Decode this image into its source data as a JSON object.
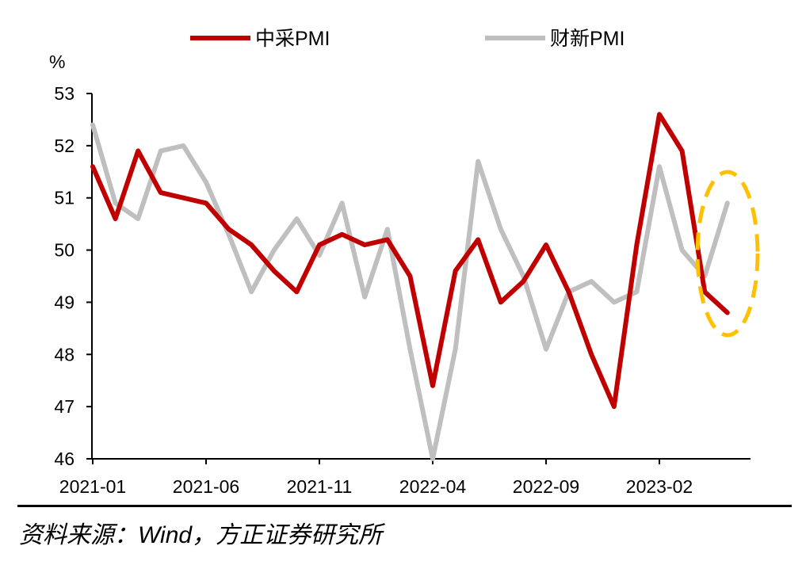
{
  "chart_data": {
    "type": "line",
    "y_unit": "%",
    "ylim": [
      46,
      53
    ],
    "yticks": [
      "46",
      "47",
      "48",
      "49",
      "50",
      "51",
      "52",
      "53"
    ],
    "x": [
      "2021-01",
      "2021-02",
      "2021-03",
      "2021-04",
      "2021-05",
      "2021-06",
      "2021-07",
      "2021-08",
      "2021-09",
      "2021-10",
      "2021-11",
      "2021-12",
      "2022-01",
      "2022-02",
      "2022-03",
      "2022-04",
      "2022-05",
      "2022-06",
      "2022-07",
      "2022-08",
      "2022-09",
      "2022-10",
      "2022-11",
      "2022-12",
      "2023-01",
      "2023-02",
      "2023-03",
      "2023-04",
      "2023-05"
    ],
    "xtick_labels": [
      "2021-01",
      "2021-06",
      "2021-11",
      "2022-04",
      "2022-09",
      "2023-02"
    ],
    "series": [
      {
        "name": "中采PMI",
        "color": "#c00000",
        "values": [
          51.6,
          50.6,
          51.9,
          51.1,
          51.0,
          50.9,
          50.4,
          50.1,
          49.6,
          49.2,
          50.1,
          50.3,
          50.1,
          50.2,
          49.5,
          47.4,
          49.6,
          50.2,
          49.0,
          49.4,
          50.1,
          49.2,
          48.0,
          47.0,
          50.1,
          52.6,
          51.9,
          49.2,
          48.8
        ]
      },
      {
        "name": "财新PMI",
        "color": "#bfbfbf",
        "values": [
          52.4,
          50.9,
          50.6,
          51.9,
          52.0,
          51.3,
          50.3,
          49.2,
          50.0,
          50.6,
          49.9,
          50.9,
          49.1,
          50.4,
          48.1,
          46.0,
          48.1,
          51.7,
          50.4,
          49.5,
          48.1,
          49.2,
          49.4,
          49.0,
          49.2,
          51.6,
          50.0,
          49.5,
          50.9
        ]
      }
    ],
    "annotation": "dashed-ellipse-highlight",
    "annotation_color": "#ffc000"
  },
  "footer": {
    "source": "资料来源：Wind，方正证券研究所"
  }
}
